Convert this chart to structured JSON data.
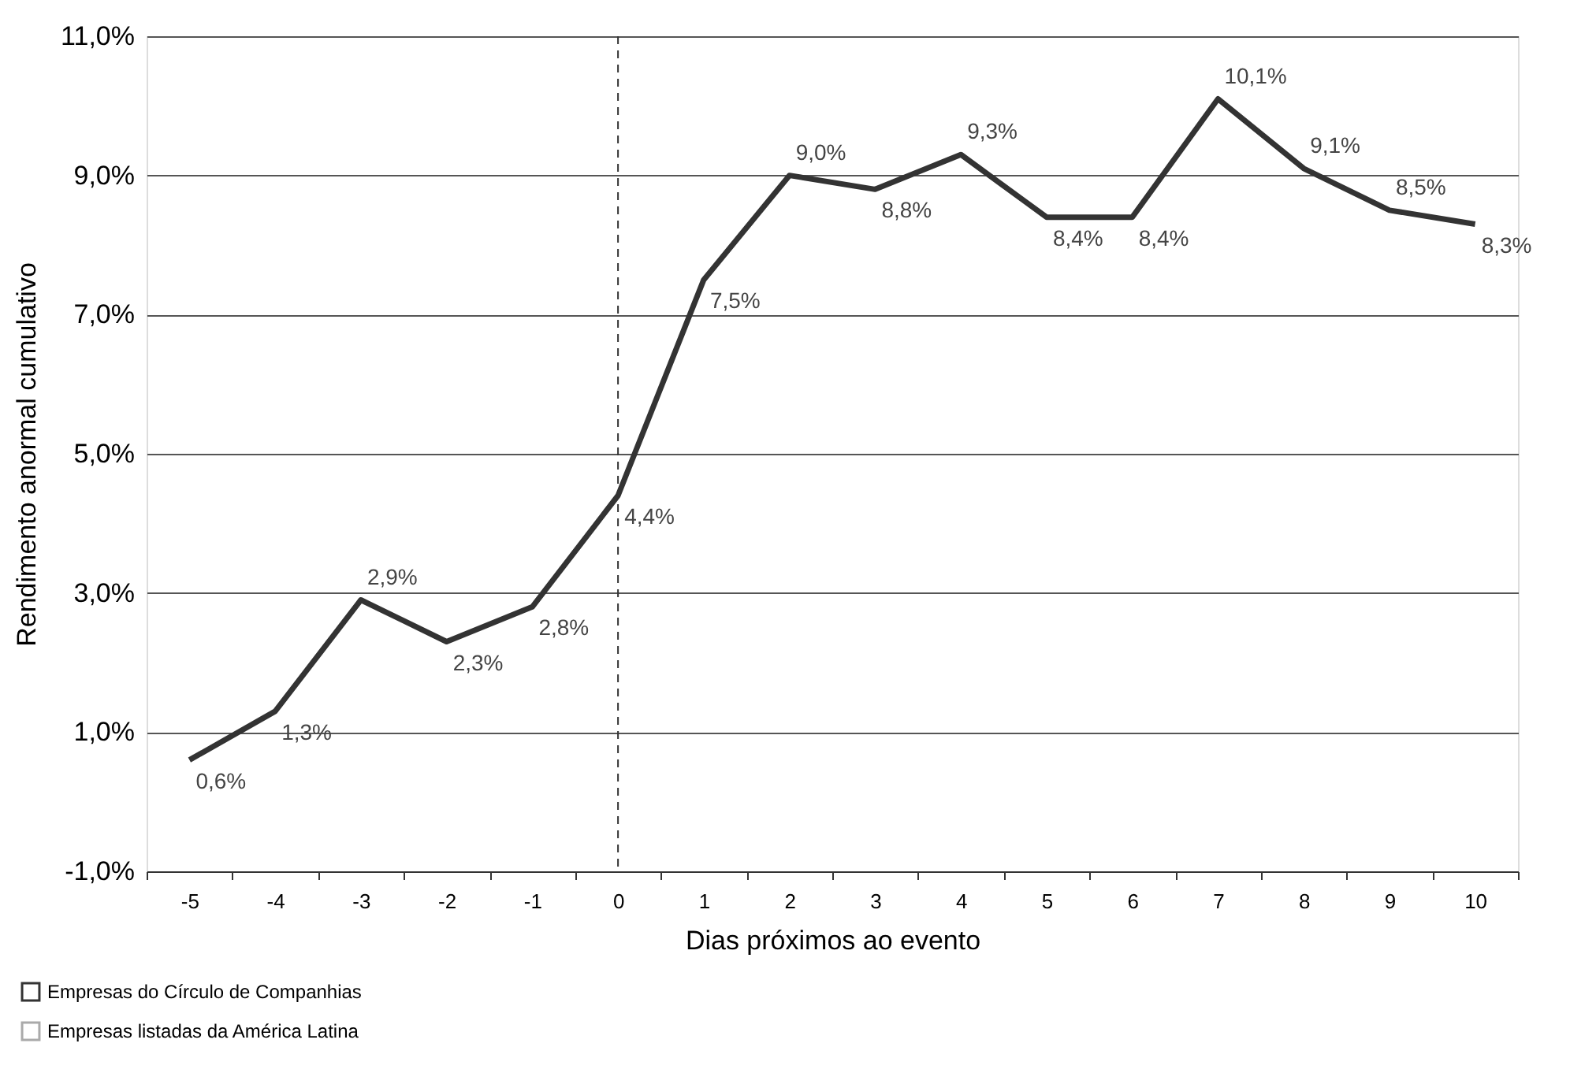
{
  "chart_data": {
    "type": "line",
    "xlabel": "Dias próximos ao evento",
    "ylabel": "Rendimento anormal cumulativo",
    "categories": [
      "-5",
      "-4",
      "-3",
      "-2",
      "-1",
      "0",
      "1",
      "2",
      "3",
      "4",
      "5",
      "6",
      "7",
      "8",
      "9",
      "10"
    ],
    "series": [
      {
        "name": "Empresas do Círculo de Companhias",
        "color": "#333333",
        "values": [
          0.6,
          1.3,
          2.9,
          2.3,
          2.8,
          4.4,
          7.5,
          9.0,
          8.8,
          9.3,
          8.4,
          8.4,
          10.1,
          9.1,
          8.5,
          8.3
        ],
        "value_labels": [
          "0,6%",
          "1,3%",
          "2,9%",
          "2,3%",
          "2,8%",
          "4,4%",
          "7,5%",
          "9,0%",
          "8,8%",
          "9,3%",
          "8,4%",
          "8,4%",
          "10,1%",
          "9,1%",
          "8,5%",
          "8,3%"
        ]
      },
      {
        "name": "Empresas listadas da América Latina",
        "color": "#aaaaaa",
        "values": [
          null,
          null,
          null,
          null,
          null,
          null,
          null,
          null,
          null,
          null,
          null,
          null,
          null,
          null,
          null,
          null
        ]
      }
    ],
    "ylim": [
      -1,
      11
    ],
    "yticks": [
      {
        "value": -1,
        "label": "-1,0%"
      },
      {
        "value": 1,
        "label": "1,0%"
      },
      {
        "value": 3,
        "label": "3,0%"
      },
      {
        "value": 5,
        "label": "5,0%"
      },
      {
        "value": 7,
        "label": "7,0%"
      },
      {
        "value": 9,
        "label": "9,0%"
      },
      {
        "value": 11,
        "label": "11,0%"
      }
    ],
    "grid": "y",
    "legend": "bottom left",
    "marker": "none",
    "line_style": "solid",
    "ref_lines": [
      {
        "axis": "x",
        "value": "0",
        "line_style": "dashed",
        "color": "#333333"
      }
    ]
  }
}
